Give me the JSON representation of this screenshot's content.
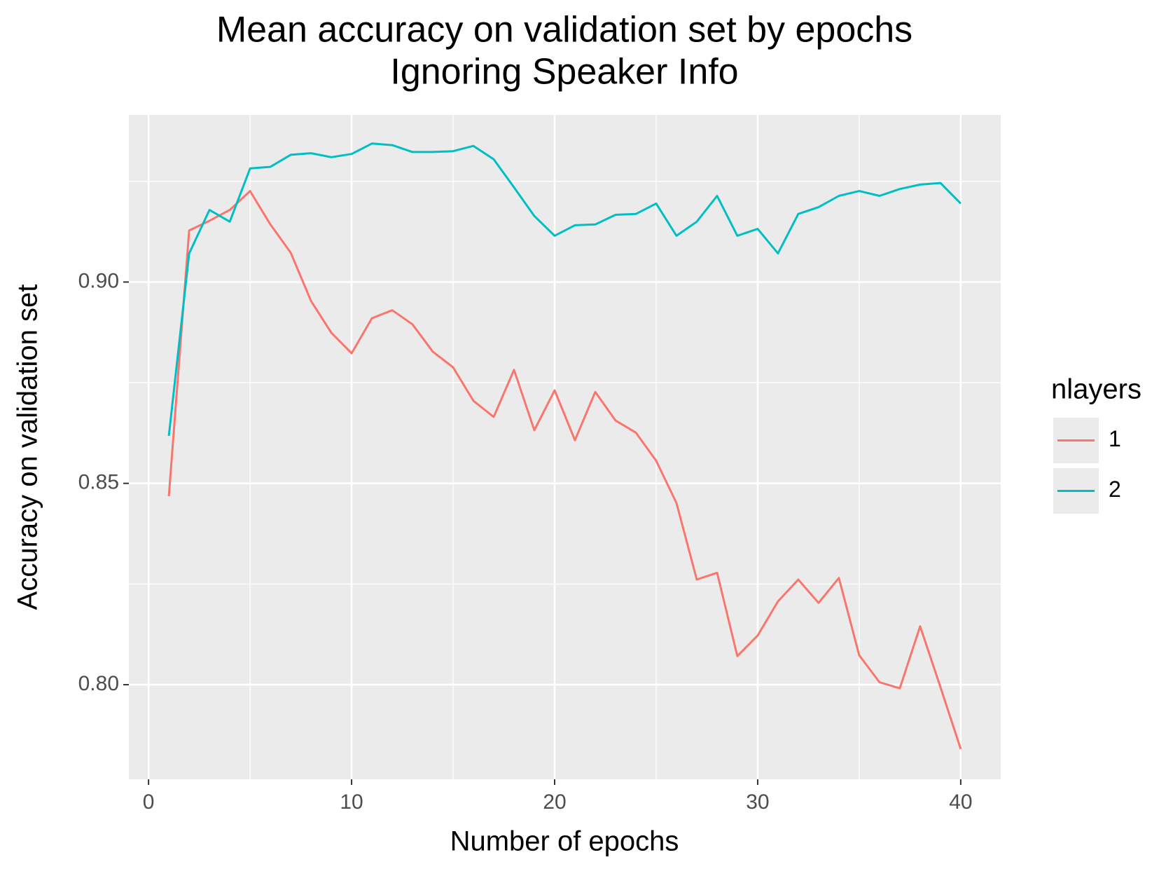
{
  "chart_data": {
    "type": "line",
    "title": "Mean accuracy on validation set by epochs",
    "subtitle": "Ignoring Speaker Info",
    "x_label": "Number of epochs",
    "y_label": "Accuracy on validation set",
    "legend_title": "nlayers",
    "legend_position": "right",
    "grid": true,
    "x": [
      1,
      2,
      3,
      4,
      5,
      6,
      7,
      8,
      9,
      10,
      11,
      12,
      13,
      14,
      15,
      16,
      17,
      18,
      19,
      20,
      21,
      22,
      23,
      24,
      25,
      26,
      27,
      28,
      29,
      30,
      31,
      32,
      33,
      34,
      35,
      36,
      37,
      38,
      39,
      40
    ],
    "series": [
      {
        "name": "1",
        "color": "#f8766d",
        "values": [
          0.8468,
          0.9128,
          0.9152,
          0.9179,
          0.9226,
          0.9143,
          0.9073,
          0.8953,
          0.8874,
          0.8823,
          0.891,
          0.893,
          0.8895,
          0.8827,
          0.8788,
          0.8705,
          0.8665,
          0.8782,
          0.8632,
          0.8731,
          0.8607,
          0.8727,
          0.8656,
          0.8626,
          0.8556,
          0.8451,
          0.8261,
          0.8278,
          0.8071,
          0.8122,
          0.8207,
          0.8261,
          0.8203,
          0.8265,
          0.8073,
          0.8006,
          0.7991,
          0.8145,
          0.7994,
          0.784
        ]
      },
      {
        "name": "2",
        "color": "#00bfc4",
        "values": [
          0.8618,
          0.9071,
          0.9179,
          0.915,
          0.9282,
          0.9286,
          0.9316,
          0.932,
          0.931,
          0.9318,
          0.9344,
          0.934,
          0.9323,
          0.9323,
          0.9325,
          0.9338,
          0.9305,
          0.9235,
          0.9164,
          0.9115,
          0.9141,
          0.9143,
          0.9167,
          0.9169,
          0.9195,
          0.9115,
          0.915,
          0.9214,
          0.9115,
          0.9132,
          0.9071,
          0.9169,
          0.9186,
          0.9214,
          0.9226,
          0.9214,
          0.9231,
          0.9242,
          0.9246,
          0.9195
        ]
      }
    ],
    "xlim": [
      -0.97,
      41.97
    ],
    "xticks": [
      0,
      10,
      20,
      30,
      40
    ],
    "ylim": [
      0.7765,
      0.9415
    ],
    "yticks": [
      {
        "value": 0.8,
        "label": "0.80"
      },
      0.85,
      {
        "value": 0.9,
        "label": "0.90"
      }
    ]
  }
}
